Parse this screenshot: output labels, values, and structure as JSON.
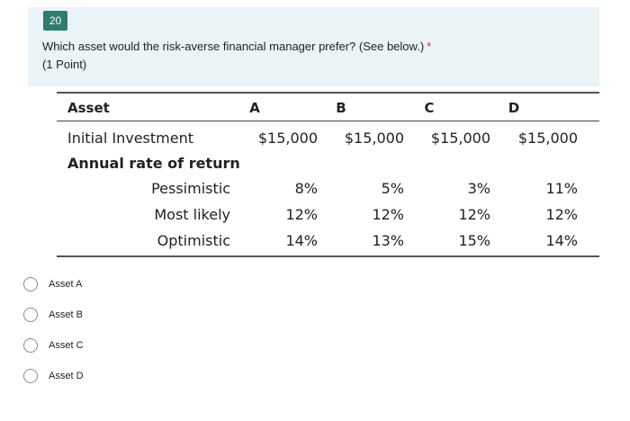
{
  "question": {
    "number": "20",
    "text": "Which asset would the risk-averse financial manager prefer? (See below.)",
    "required_mark": "*",
    "points": "(1 Point)"
  },
  "table": {
    "header": {
      "label": "Asset",
      "cols": [
        "A",
        "B",
        "C",
        "D"
      ]
    },
    "initial_investment": {
      "label": "Initial Investment",
      "values": [
        "$15,000",
        "$15,000",
        "$15,000",
        "$15,000"
      ]
    },
    "annual_rate_label": "Annual rate of return",
    "rows": [
      {
        "label": "Pessimistic",
        "values": [
          "8%",
          "5%",
          "3%",
          "11%"
        ]
      },
      {
        "label": "Most likely",
        "values": [
          "12%",
          "12%",
          "12%",
          "12%"
        ]
      },
      {
        "label": "Optimistic",
        "values": [
          "14%",
          "13%",
          "15%",
          "14%"
        ]
      }
    ]
  },
  "options": [
    {
      "label": "Asset A"
    },
    {
      "label": "Asset B"
    },
    {
      "label": "Asset C"
    },
    {
      "label": "Asset D"
    }
  ]
}
